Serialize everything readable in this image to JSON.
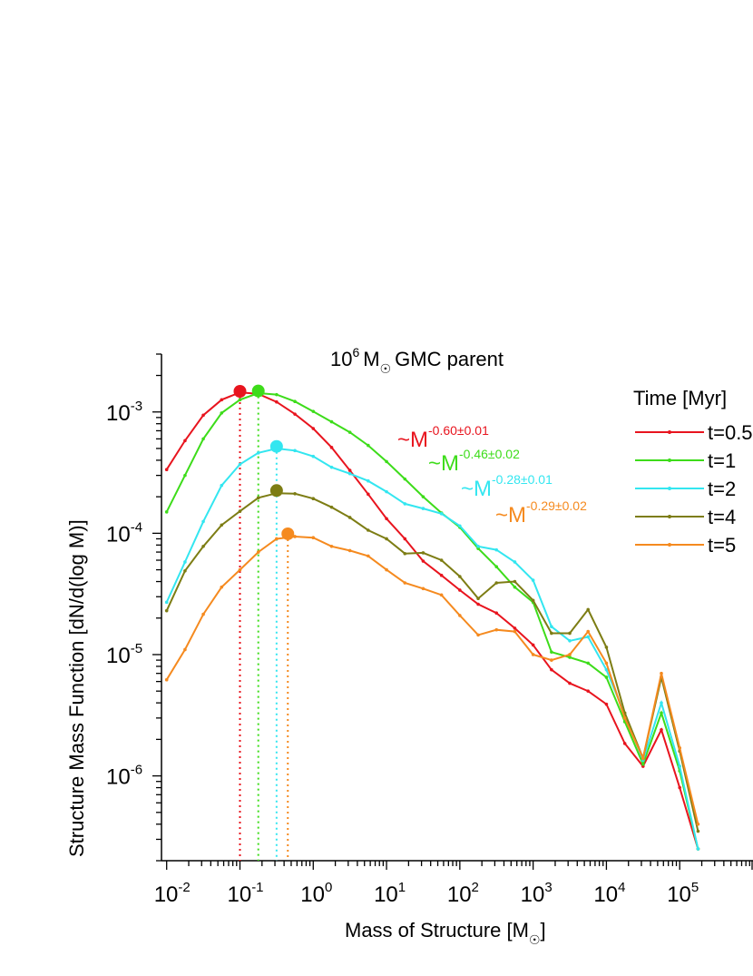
{
  "chart_data": {
    "type": "line",
    "title": {
      "pre": "10",
      "exp": "6",
      "unit": "M",
      "tail": "GMC parent"
    },
    "xlabel": {
      "pre": "Mass of Structure [M",
      "post": "]"
    },
    "ylabel": "Structure Mass Function [dN/d(log M)]",
    "xscale": "log",
    "yscale": "log",
    "xlim": [
      0.0085,
      1000000
    ],
    "ylim": [
      2e-07,
      0.003
    ],
    "xticks": [
      {
        "base": "10",
        "exp": "-2",
        "value": 0.01
      },
      {
        "base": "10",
        "exp": "-1",
        "value": 0.1
      },
      {
        "base": "10",
        "exp": "0",
        "value": 1
      },
      {
        "base": "10",
        "exp": "1",
        "value": 10
      },
      {
        "base": "10",
        "exp": "2",
        "value": 100
      },
      {
        "base": "10",
        "exp": "3",
        "value": 1000
      },
      {
        "base": "10",
        "exp": "4",
        "value": 10000
      },
      {
        "base": "10",
        "exp": "5",
        "value": 100000
      }
    ],
    "yticks": [
      {
        "base": "10",
        "exp": "-3",
        "value": 0.001
      },
      {
        "base": "10",
        "exp": "-4",
        "value": 0.0001
      },
      {
        "base": "10",
        "exp": "-5",
        "value": 1e-05
      },
      {
        "base": "10",
        "exp": "-6",
        "value": 1e-06
      }
    ],
    "legend": {
      "title": "Time [Myr]",
      "placement": "right"
    },
    "x": [
      0.01,
      0.0178,
      0.0316,
      0.0562,
      0.1,
      0.178,
      0.316,
      0.562,
      1,
      1.78,
      3.16,
      5.62,
      10,
      17.8,
      31.6,
      56.2,
      100,
      178,
      316,
      562,
      1000,
      1780,
      3160,
      5620,
      10000,
      17800,
      31600,
      56200,
      100000,
      178000
    ],
    "series": [
      {
        "name": "t=0.5",
        "color": "#e8141e",
        "values": [
          0.000335,
          0.00058,
          0.00094,
          0.00126,
          0.00145,
          0.00141,
          0.00121,
          0.00096,
          0.00073,
          0.00051,
          0.00033,
          0.00021,
          0.000132,
          9e-05,
          5.9e-05,
          4.5e-05,
          3.4e-05,
          2.6e-05,
          2.2e-05,
          1.65e-05,
          1.2e-05,
          7.5e-06,
          5.8e-06,
          5e-06,
          3.9e-06,
          1.85e-06,
          1.2e-06,
          2.4e-06,
          8e-07,
          2.5e-07
        ],
        "peak": {
          "x": 0.1,
          "y": 0.00148
        }
      },
      {
        "name": "t=1",
        "color": "#3ddc1a",
        "values": [
          0.00015,
          0.0003,
          0.0006,
          0.00098,
          0.00126,
          0.00143,
          0.00139,
          0.00122,
          0.00101,
          0.00083,
          0.00068,
          0.00053,
          0.00039,
          0.00028,
          0.0002,
          0.000147,
          0.000112,
          7.5e-05,
          5.3e-05,
          3.6e-05,
          2.7e-05,
          1.05e-05,
          9.5e-06,
          8.5e-06,
          6.5e-06,
          2.8e-06,
          1.25e-06,
          3.3e-06,
          1.1e-06,
          2.5e-07
        ],
        "peak": {
          "x": 0.178,
          "y": 0.00149
        }
      },
      {
        "name": "t=2",
        "color": "#33e6f0",
        "values": [
          2.7e-05,
          5.8e-05,
          0.000125,
          0.000248,
          0.00037,
          0.00046,
          0.0005,
          0.00048,
          0.00043,
          0.00035,
          0.00031,
          0.00027,
          0.00022,
          0.000175,
          0.00016,
          0.000145,
          0.000115,
          7.8e-05,
          7.3e-05,
          5.8e-05,
          4.1e-05,
          1.7e-05,
          1.3e-05,
          1.4e-05,
          7.5e-06,
          3.2e-06,
          1.35e-06,
          4e-06,
          1.2e-06,
          2.5e-07
        ],
        "peak": {
          "x": 0.316,
          "y": 0.00052
        }
      },
      {
        "name": "t=4",
        "color": "#7d7d14",
        "values": [
          2.3e-05,
          4.9e-05,
          7.8e-05,
          0.000117,
          0.000152,
          0.000196,
          0.000214,
          0.000212,
          0.000193,
          0.000164,
          0.000135,
          0.000106,
          9e-05,
          6.8e-05,
          6.9e-05,
          6e-05,
          4.4e-05,
          2.9e-05,
          3.9e-05,
          4e-05,
          2.8e-05,
          1.5e-05,
          1.5e-05,
          2.35e-05,
          1.15e-05,
          3.3e-06,
          1.4e-06,
          6.5e-06,
          1.6e-06,
          3.5e-07
        ],
        "peak": {
          "x": 0.316,
          "y": 0.000225
        }
      },
      {
        "name": "t=5",
        "color": "#f58a1f",
        "values": [
          6.2e-06,
          1.1e-05,
          2.15e-05,
          3.6e-05,
          5e-05,
          7e-05,
          9e-05,
          9.4e-05,
          9.2e-05,
          7.8e-05,
          7.2e-05,
          6.5e-05,
          5e-05,
          3.9e-05,
          3.5e-05,
          3.1e-05,
          2.1e-05,
          1.45e-05,
          1.6e-05,
          1.55e-05,
          1e-05,
          9e-06,
          1e-05,
          1.55e-05,
          8.5e-06,
          3e-06,
          1.4e-06,
          7e-06,
          1.7e-06,
          4e-07
        ],
        "peak": {
          "x": 0.45,
          "y": 9.9e-05
        }
      }
    ],
    "fits": [
      {
        "prefix": "~M",
        "exponent": "-0.60±0.01",
        "color": "#e8141e"
      },
      {
        "prefix": "~M",
        "exponent": "-0.46±0.02",
        "color": "#3ddc1a"
      },
      {
        "prefix": "~M",
        "exponent": "-0.28±0.01",
        "color": "#33e6f0"
      },
      {
        "prefix": "~M",
        "exponent": "-0.29±0.02",
        "color": "#f58a1f"
      }
    ]
  }
}
